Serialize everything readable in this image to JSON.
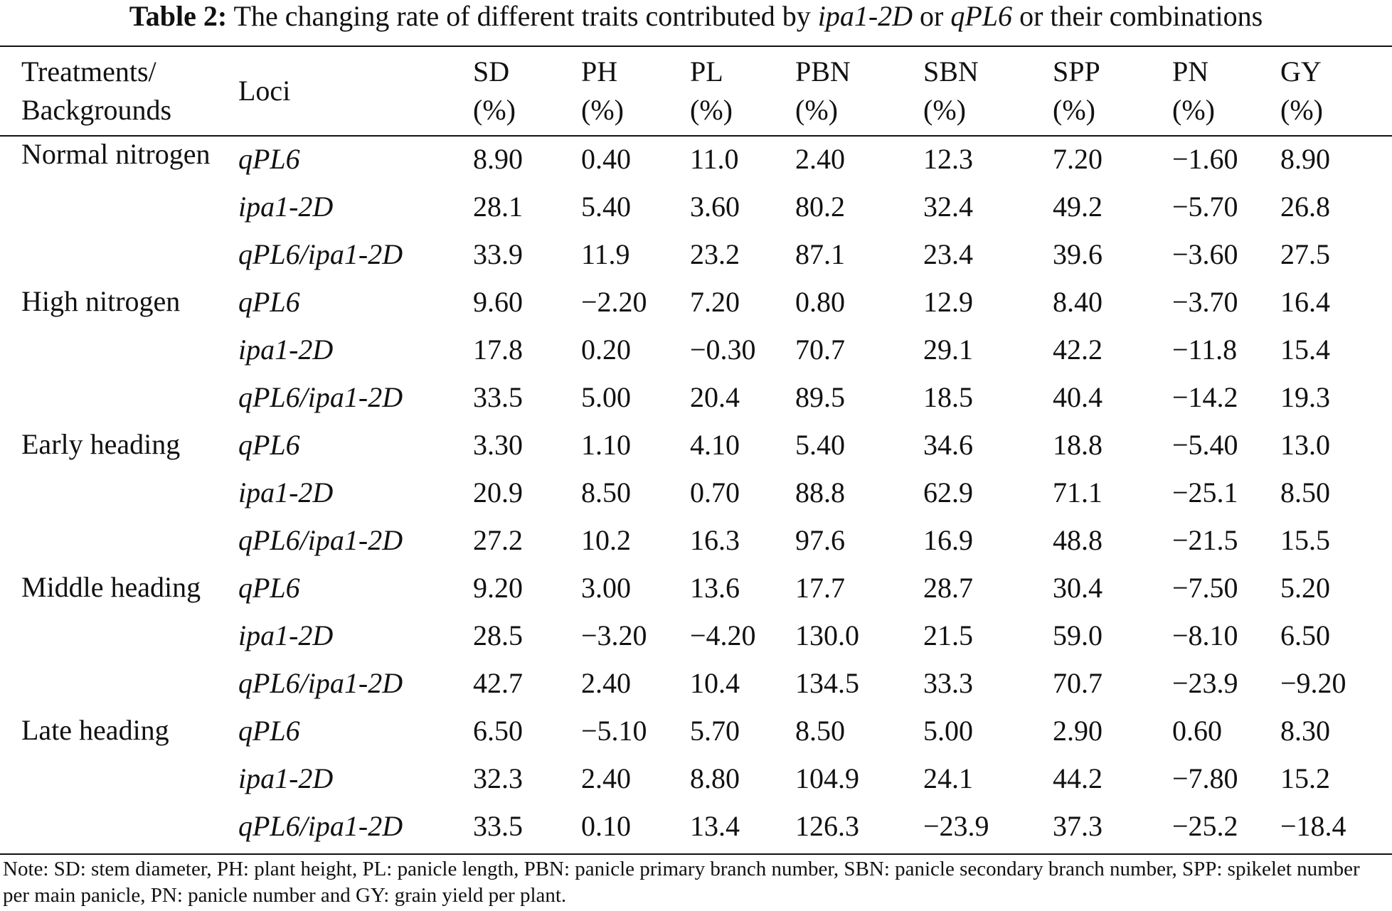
{
  "caption": {
    "label": "Table 2:",
    "text_before": "The changing rate of different traits contributed by",
    "term1": "ipa1-2D",
    "joiner1": "or",
    "term2": "qPL6",
    "text_after": "or their combinations"
  },
  "headers": {
    "treatment": [
      "Treatments/",
      "Backgrounds"
    ],
    "loci": "Loci",
    "traits": [
      {
        "abbr": "SD",
        "unit": "(%)"
      },
      {
        "abbr": "PH",
        "unit": "(%)"
      },
      {
        "abbr": "PL",
        "unit": "(%)"
      },
      {
        "abbr": "PBN",
        "unit": "(%)"
      },
      {
        "abbr": "SBN",
        "unit": "(%)"
      },
      {
        "abbr": "SPP",
        "unit": "(%)"
      },
      {
        "abbr": "PN",
        "unit": "(%)"
      },
      {
        "abbr": "GY",
        "unit": "(%)"
      }
    ]
  },
  "groups": [
    {
      "treatment": "Normal nitrogen",
      "rows": [
        {
          "locus": "qPL6",
          "values": [
            "8.90",
            "0.40",
            "11.0",
            "2.40",
            "12.3",
            "7.20",
            "−1.60",
            "8.90"
          ]
        },
        {
          "locus": "ipa1-2D",
          "values": [
            "28.1",
            "5.40",
            "3.60",
            "80.2",
            "32.4",
            "49.2",
            "−5.70",
            "26.8"
          ]
        },
        {
          "locus": "qPL6/ipa1-2D",
          "values": [
            "33.9",
            "11.9",
            "23.2",
            "87.1",
            "23.4",
            "39.6",
            "−3.60",
            "27.5"
          ]
        }
      ]
    },
    {
      "treatment": "High nitrogen",
      "rows": [
        {
          "locus": "qPL6",
          "values": [
            "9.60",
            "−2.20",
            "7.20",
            "0.80",
            "12.9",
            "8.40",
            "−3.70",
            "16.4"
          ]
        },
        {
          "locus": "ipa1-2D",
          "values": [
            "17.8",
            "0.20",
            "−0.30",
            "70.7",
            "29.1",
            "42.2",
            "−11.8",
            "15.4"
          ]
        },
        {
          "locus": "qPL6/ipa1-2D",
          "values": [
            "33.5",
            "5.00",
            "20.4",
            "89.5",
            "18.5",
            "40.4",
            "−14.2",
            "19.3"
          ]
        }
      ]
    },
    {
      "treatment": "Early heading",
      "rows": [
        {
          "locus": "qPL6",
          "values": [
            "3.30",
            "1.10",
            "4.10",
            "5.40",
            "34.6",
            "18.8",
            "−5.40",
            "13.0"
          ]
        },
        {
          "locus": "ipa1-2D",
          "values": [
            "20.9",
            "8.50",
            "0.70",
            "88.8",
            "62.9",
            "71.1",
            "−25.1",
            "8.50"
          ]
        },
        {
          "locus": "qPL6/ipa1-2D",
          "values": [
            "27.2",
            "10.2",
            "16.3",
            "97.6",
            "16.9",
            "48.8",
            "−21.5",
            "15.5"
          ]
        }
      ]
    },
    {
      "treatment": "Middle heading",
      "rows": [
        {
          "locus": "qPL6",
          "values": [
            "9.20",
            "3.00",
            "13.6",
            "17.7",
            "28.7",
            "30.4",
            "−7.50",
            "5.20"
          ]
        },
        {
          "locus": "ipa1-2D",
          "values": [
            "28.5",
            "−3.20",
            "−4.20",
            "130.0",
            "21.5",
            "59.0",
            "−8.10",
            "6.50"
          ]
        },
        {
          "locus": "qPL6/ipa1-2D",
          "values": [
            "42.7",
            "2.40",
            "10.4",
            "134.5",
            "33.3",
            "70.7",
            "−23.9",
            "−9.20"
          ]
        }
      ]
    },
    {
      "treatment": "Late heading",
      "rows": [
        {
          "locus": "qPL6",
          "values": [
            "6.50",
            "−5.10",
            "5.70",
            "8.50",
            "5.00",
            "2.90",
            "0.60",
            "8.30"
          ]
        },
        {
          "locus": "ipa1-2D",
          "values": [
            "32.3",
            "2.40",
            "8.80",
            "104.9",
            "24.1",
            "44.2",
            "−7.80",
            "15.2"
          ]
        },
        {
          "locus": "qPL6/ipa1-2D",
          "values": [
            "33.5",
            "0.10",
            "13.4",
            "126.3",
            "−23.9",
            "37.3",
            "−25.2",
            "−18.4"
          ]
        }
      ]
    }
  ],
  "note": "Note: SD: stem diameter, PH: plant height, PL: panicle length, PBN: panicle primary branch number, SBN: panicle secondary branch number, SPP: spikelet number per main panicle, PN: panicle number and GY: grain yield per plant."
}
